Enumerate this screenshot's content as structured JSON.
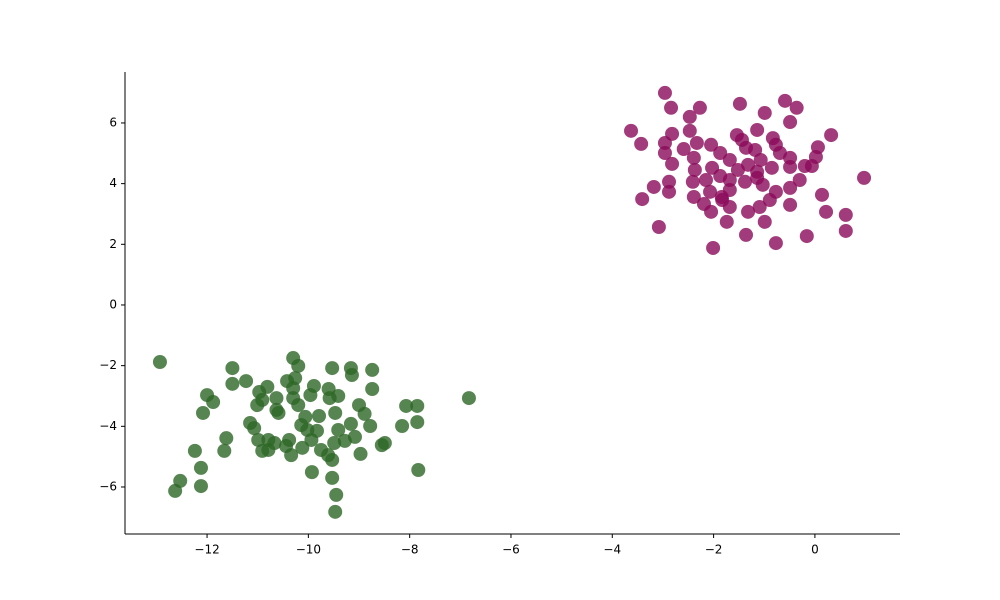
{
  "chart_data": {
    "type": "scatter",
    "xlim": [
      -13.62,
      1.68
    ],
    "ylim": [
      -7.55,
      7.68
    ],
    "xticks": [
      {
        "value": -12,
        "label": "−12"
      },
      {
        "value": -10,
        "label": "−10"
      },
      {
        "value": -8,
        "label": "−8"
      },
      {
        "value": -6,
        "label": "−6"
      },
      {
        "value": -4,
        "label": "−4"
      },
      {
        "value": -2,
        "label": "−2"
      },
      0
    ],
    "yticks": [
      {
        "value": -6,
        "label": "−6"
      },
      {
        "value": -4,
        "label": "−4"
      },
      {
        "value": -2,
        "label": "−2"
      },
      0,
      2,
      4,
      6
    ],
    "grid": false,
    "series": [
      {
        "color": "#8b0a5a",
        "x": [
          -2.96,
          -2.84,
          -2.27,
          -1.48,
          -0.59,
          -0.36,
          -0.99,
          -3.63,
          -3.43,
          -2.96,
          -2.82,
          -2.47,
          -2.47,
          -0.49,
          0.32,
          -1.14,
          -1.54,
          -0.83,
          0.06,
          0.02,
          -0.06,
          -0.2,
          -0.49,
          -0.69,
          -0.77,
          -2.59,
          -2.33,
          -2.05,
          -2.96,
          -2.82,
          -2.39,
          -1.87,
          -1.68,
          -1.36,
          -1.44,
          -1.18,
          -1.07,
          -1.32,
          -1.52,
          -1.14,
          -0.85,
          -0.49,
          -2.37,
          -2.03,
          -2.88,
          -3.18,
          -2.41,
          -2.15,
          -1.87,
          -1.68,
          -1.38,
          -1.03,
          -0.3,
          0.97,
          -2.88,
          -2.39,
          -2.07,
          -1.84,
          -1.68,
          -0.77,
          -0.49,
          0.14,
          -3.41,
          -2.19,
          -1.68,
          -1.32,
          -1.09,
          -0.89,
          -0.49,
          0.22,
          0.61,
          -2.05,
          -1.74,
          -0.99,
          -3.08,
          0.61,
          -1.36,
          -0.16,
          -0.77,
          -2.01,
          -1.83,
          -1.14
        ],
        "values": [
          6.99,
          6.5,
          6.5,
          6.63,
          6.73,
          6.5,
          6.33,
          5.74,
          5.31,
          5.34,
          5.64,
          5.74,
          6.2,
          6.03,
          5.6,
          5.77,
          5.6,
          5.5,
          5.2,
          4.88,
          4.58,
          4.58,
          4.85,
          5.01,
          5.28,
          5.14,
          5.34,
          5.28,
          5.01,
          4.65,
          4.85,
          5.01,
          4.78,
          5.18,
          5.44,
          5.11,
          4.78,
          4.62,
          4.45,
          4.39,
          4.52,
          4.55,
          4.45,
          4.52,
          4.06,
          3.89,
          4.06,
          4.12,
          4.25,
          4.12,
          4.06,
          3.96,
          4.12,
          4.19,
          3.73,
          3.56,
          3.73,
          3.56,
          3.79,
          3.73,
          3.86,
          3.63,
          3.49,
          3.33,
          3.23,
          3.07,
          3.23,
          3.46,
          3.3,
          3.07,
          2.97,
          3.07,
          2.74,
          2.74,
          2.57,
          2.44,
          2.31,
          2.27,
          2.04,
          1.88,
          3.46,
          4.19
        ]
      },
      {
        "color": "#2d6626",
        "x": [
          -12.93,
          -10.3,
          -11.5,
          -11.23,
          -11.5,
          -10.2,
          -9.53,
          -9.16,
          -8.74,
          -9.14,
          -10.42,
          -10.26,
          -10.3,
          -9.89,
          -9.6,
          -8.74,
          -10.81,
          -10.97,
          -12,
          -11.88,
          -10.91,
          -10.63,
          -10.3,
          -9.96,
          -9.41,
          -9.58,
          -6.83,
          -8.07,
          -7.85,
          -9,
          -11.01,
          -10.2,
          -12.08,
          -10.63,
          -10.59,
          -9.47,
          -8.89,
          -10.06,
          -9.79,
          -11.15,
          -11.07,
          -10.14,
          -9.16,
          -8.78,
          -8.15,
          -7.85,
          -10.02,
          -9.83,
          -9.41,
          -11.62,
          -10.99,
          -10.79,
          -10.67,
          -10.38,
          -9.94,
          -9.49,
          -9.28,
          -9.08,
          -8.49,
          -8.55,
          -12.24,
          -11.66,
          -10.91,
          -10.79,
          -10.44,
          -10.12,
          -9.75,
          -9.61,
          -10.34,
          -8.97,
          -9.53,
          -12.12,
          -9.93,
          -7.83,
          -9.53,
          -12.53,
          -12.12,
          -12.63,
          -9.45,
          -9.47
        ],
        "values": [
          -1.88,
          -1.75,
          -2.08,
          -2.51,
          -2.6,
          -2.01,
          -2.08,
          -2.08,
          -2.14,
          -2.31,
          -2.51,
          -2.41,
          -2.74,
          -2.67,
          -2.77,
          -2.77,
          -2.7,
          -2.87,
          -2.97,
          -3.2,
          -3.13,
          -3.07,
          -3.07,
          -2.97,
          -3,
          -3.07,
          -3.07,
          -3.33,
          -3.33,
          -3.3,
          -3.3,
          -3.3,
          -3.56,
          -3.46,
          -3.56,
          -3.56,
          -3.59,
          -3.69,
          -3.66,
          -3.89,
          -4.06,
          -3.96,
          -3.92,
          -3.99,
          -3.99,
          -3.86,
          -4.12,
          -4.15,
          -4.12,
          -4.39,
          -4.45,
          -4.45,
          -4.55,
          -4.45,
          -4.45,
          -4.55,
          -4.48,
          -4.35,
          -4.55,
          -4.62,
          -4.81,
          -4.81,
          -4.81,
          -4.78,
          -4.65,
          -4.71,
          -4.78,
          -4.95,
          -4.95,
          -4.91,
          -5.11,
          -5.37,
          -5.51,
          -5.44,
          -5.7,
          -5.8,
          -5.97,
          -6.13,
          -6.26,
          -6.82
        ]
      }
    ]
  }
}
